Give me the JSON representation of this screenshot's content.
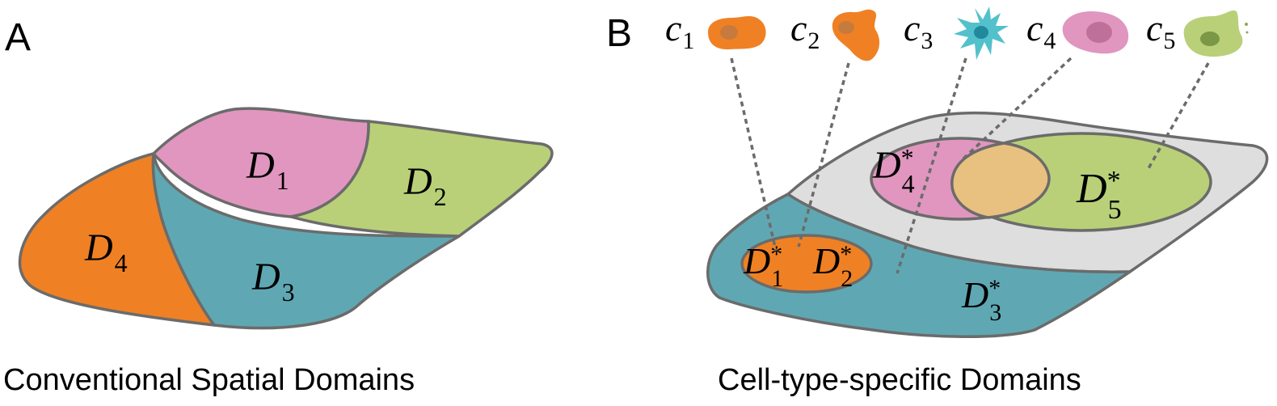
{
  "panel_a": {
    "letter": "A",
    "caption": "Conventional Spatial Domains",
    "domains": [
      {
        "base": "D",
        "sub": "1",
        "color": "#e096bf"
      },
      {
        "base": "D",
        "sub": "2",
        "color": "#b9d078"
      },
      {
        "base": "D",
        "sub": "3",
        "color": "#5fa8b3"
      },
      {
        "base": "D",
        "sub": "4",
        "color": "#ef8124"
      }
    ]
  },
  "panel_b": {
    "letter": "B",
    "caption": "Cell-type-specific Domains",
    "cells": [
      {
        "base": "c",
        "sub": "1",
        "color": "#ef8124"
      },
      {
        "base": "c",
        "sub": "2",
        "color": "#ef8124"
      },
      {
        "base": "c",
        "sub": "3",
        "color": "#52c1cc"
      },
      {
        "base": "c",
        "sub": "4",
        "color": "#e096bf"
      },
      {
        "base": "c",
        "sub": "5",
        "color": "#b9d078"
      }
    ],
    "domains": [
      {
        "base": "D",
        "sup": "*",
        "sub": "1",
        "color": "#ef8124"
      },
      {
        "base": "D",
        "sup": "*",
        "sub": "2",
        "color": "#ef8124"
      },
      {
        "base": "D",
        "sup": "*",
        "sub": "3",
        "color": "#5fa8b3"
      },
      {
        "base": "D",
        "sup": "*",
        "sub": "4",
        "color": "#e096bf"
      },
      {
        "base": "D",
        "sup": "*",
        "sub": "5",
        "color": "#b9d078"
      }
    ],
    "overlap_color": "#e8c07f",
    "background_color": "#dedede"
  }
}
